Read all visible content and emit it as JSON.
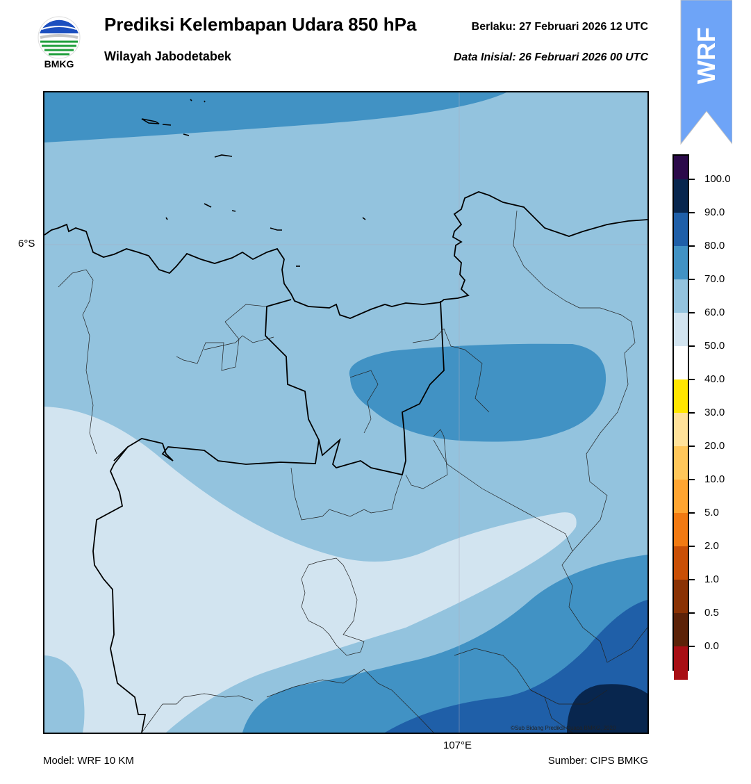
{
  "header": {
    "logo_text": "BMKG",
    "title": "Prediksi Kelembapan Udara 850 hPa",
    "subtitle": "Wilayah Jabodetabek",
    "valid": "Berlaku:  27 Februari 2026 12 UTC",
    "initial": "Data Inisial:  26 Februari 2026 00 UTC",
    "badge": "WRF"
  },
  "map": {
    "lat_label": "6°S",
    "lon_label": "107°E",
    "copyright": "©Sub Bidang Prediksi Cuaca BMKG, 2020"
  },
  "footer": {
    "model": "Model: WRF 10 KM",
    "source": "Sumber: CIPS BMKG"
  },
  "colorbar": {
    "labels": [
      "100.0",
      "90.0",
      "80.0",
      "70.0",
      "60.0",
      "50.0",
      "40.0",
      "30.0",
      "20.0",
      "10.0",
      "5.0",
      "2.0",
      "1.0",
      "0.5",
      "0.0"
    ],
    "colors_top_to_bottom": [
      "#2b0a4a",
      "#08264e",
      "#1f5fa8",
      "#4192c4",
      "#93c3de",
      "#d2e4f0",
      "#ffffff",
      "#ffe600",
      "#ffe29a",
      "#ffc75a",
      "#ffa531",
      "#f27a12",
      "#c94f06",
      "#8a3204",
      "#5c2208",
      "#a80e14",
      "#e8413a"
    ]
  },
  "colors": {
    "band_60_70": "#d2e4f0",
    "band_70_80": "#93c3de",
    "band_80_90": "#4192c4",
    "band_90_100": "#1f5fa8",
    "band_100": "#08264e",
    "badge": "#6ea4f7"
  }
}
